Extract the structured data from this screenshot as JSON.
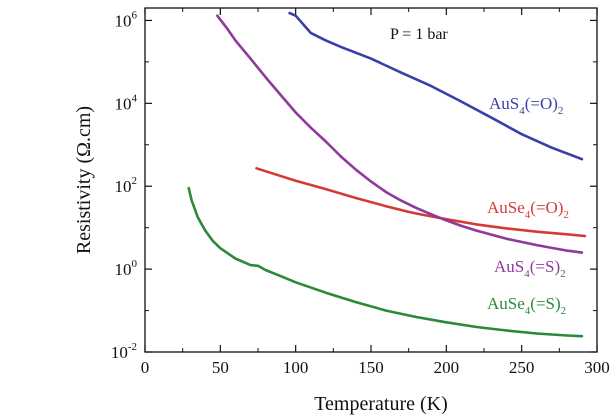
{
  "chart_data": {
    "type": "line",
    "title": "",
    "xlabel": "Temperature (K)",
    "ylabel": "Resistivity (Ω.cm)",
    "xlim": [
      0,
      300
    ],
    "ylim_log10": [
      -2,
      6.3
    ],
    "y_scale": "log",
    "x_ticks": [
      0,
      50,
      100,
      150,
      200,
      250,
      300
    ],
    "y_ticks": [
      {
        "exp": 6,
        "base": "10",
        "sup": "6"
      },
      {
        "exp": 4,
        "base": "10",
        "sup": "4"
      },
      {
        "exp": 2,
        "base": "10",
        "sup": "2"
      },
      {
        "exp": 0,
        "base": "10",
        "sup": "0"
      },
      {
        "exp": -2,
        "base": "10",
        "sup": "-2"
      }
    ],
    "grid": false,
    "annotation": "P = 1 bar",
    "series": [
      {
        "label_main": "AuS",
        "label_sub1": "4",
        "label_mid": "(=O)",
        "label_sub2": "2",
        "color": "#3a3fa8",
        "x": [
          96,
          100,
          110,
          120,
          130,
          150,
          170,
          190,
          210,
          230,
          250,
          270,
          290
        ],
        "y": [
          1500000.0,
          1300000.0,
          500000.0,
          330000.0,
          230000.0,
          120000.0,
          55000.0,
          26000.0,
          11000.0,
          4500.0,
          1800.0,
          850.0,
          450.0
        ]
      },
      {
        "label_main": "AuSe",
        "label_sub1": "4",
        "label_mid": "(=O)",
        "label_sub2": "2",
        "color": "#d63a36",
        "x": [
          74,
          80,
          100,
          120,
          140,
          160,
          175,
          180,
          200,
          220,
          240,
          260,
          280,
          292
        ],
        "y": [
          270,
          230,
          135,
          85,
          52,
          33,
          24,
          22,
          16,
          12,
          9.6,
          8.0,
          6.9,
          6.3
        ]
      },
      {
        "label_main": "AuS",
        "label_sub1": "4",
        "label_mid": "(=S)",
        "label_sub2": "2",
        "color": "#8e3a9a",
        "x": [
          48,
          55,
          60,
          70,
          80,
          90,
          100,
          110,
          120,
          130,
          140,
          150,
          160,
          170,
          180,
          190,
          200,
          210,
          220,
          240,
          260,
          280,
          290
        ],
        "y": [
          1300000.0,
          600000.0,
          330000.0,
          120000.0,
          43000.0,
          16000.0,
          6000.0,
          2600.0,
          1200.0,
          520,
          250,
          130,
          72,
          45,
          30,
          21,
          15,
          11,
          8.5,
          5.4,
          3.8,
          2.8,
          2.5
        ]
      },
      {
        "label_main": "AuSe",
        "label_sub1": "4",
        "label_mid": "(=S)",
        "label_sub2": "2",
        "color": "#2a8a3a",
        "x": [
          29,
          31,
          35,
          40,
          45,
          50,
          60,
          70,
          75,
          80,
          90,
          100,
          120,
          140,
          160,
          180,
          200,
          220,
          240,
          260,
          280,
          290
        ],
        "y": [
          90,
          45,
          18,
          8.5,
          4.8,
          3.2,
          1.8,
          1.25,
          1.2,
          0.95,
          0.68,
          0.48,
          0.27,
          0.16,
          0.1,
          0.07,
          0.052,
          0.04,
          0.033,
          0.028,
          0.025,
          0.024
        ]
      }
    ]
  }
}
